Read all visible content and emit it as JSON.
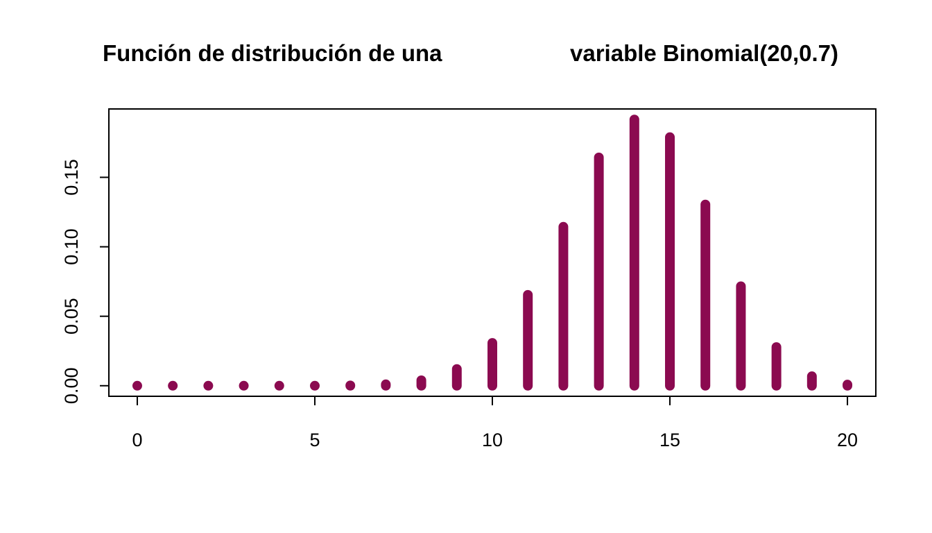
{
  "chart_data": {
    "type": "bar",
    "title_left": "Función de distribución de una",
    "title_right": "variable Binomial(20,0.7)",
    "xlabel": "",
    "ylabel": "",
    "x": [
      0,
      1,
      2,
      3,
      4,
      5,
      6,
      7,
      8,
      9,
      10,
      11,
      12,
      13,
      14,
      15,
      16,
      17,
      18,
      19,
      20
    ],
    "values": [
      0.0,
      0.0,
      0.0,
      0.0,
      0.0,
      0.0,
      0.0002,
      0.001,
      0.0039,
      0.012,
      0.0308,
      0.0654,
      0.1144,
      0.1643,
      0.1916,
      0.1789,
      0.1304,
      0.0716,
      0.0278,
      0.0068,
      0.0008
    ],
    "xlim": [
      -0.8,
      20.8
    ],
    "ylim": [
      -0.0076,
      0.1992
    ],
    "x_ticks": [
      "0",
      "5",
      "10",
      "15",
      "20"
    ],
    "x_tick_values": [
      0,
      5,
      10,
      15,
      20
    ],
    "y_ticks": [
      "0.00",
      "0.05",
      "0.10",
      "0.15"
    ],
    "y_tick_values": [
      0,
      0.05,
      0.1,
      0.15
    ],
    "grid": false,
    "legend": "none",
    "bar_color": "#8B0A50"
  }
}
